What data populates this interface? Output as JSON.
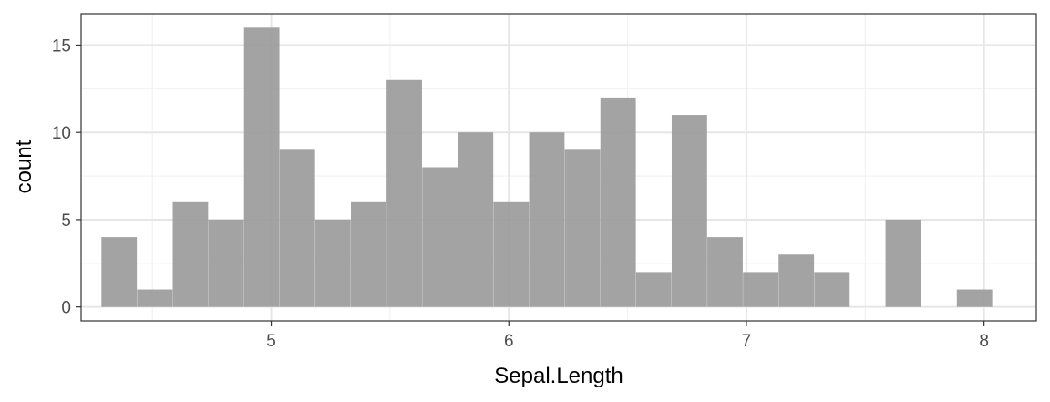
{
  "chart_data": {
    "type": "histogram",
    "xlabel": "Sepal.Length",
    "ylabel": "count",
    "xlim": [
      4.2,
      8.22
    ],
    "ylim": [
      -0.8,
      16.8
    ],
    "x_ticks": [
      5,
      6,
      7,
      8
    ],
    "x_tick_labels": [
      "5",
      "6",
      "7",
      "8"
    ],
    "y_ticks": [
      0,
      5,
      10,
      15
    ],
    "y_tick_labels": [
      "0",
      "5",
      "10",
      "15"
    ],
    "x_minor_ticks": [
      4.5,
      5.5,
      6.5,
      7.5
    ],
    "y_minor_ticks": [
      2.5,
      7.5,
      12.5
    ],
    "bin_width": 0.149,
    "bin_centers": [
      4.36,
      4.51,
      4.66,
      4.81,
      4.96,
      5.11,
      5.26,
      5.41,
      5.56,
      5.71,
      5.86,
      6.01,
      6.16,
      6.31,
      6.46,
      6.61,
      6.76,
      6.91,
      7.06,
      7.21,
      7.36,
      7.51,
      7.66,
      7.81,
      7.96
    ],
    "counts": [
      4,
      1,
      6,
      5,
      16,
      9,
      5,
      6,
      13,
      8,
      10,
      6,
      10,
      9,
      12,
      2,
      11,
      4,
      2,
      3,
      2,
      0,
      5,
      0,
      1
    ],
    "bar_color": "#999999",
    "bar_opacity": 0.9,
    "theme": "bw",
    "grid": true
  }
}
